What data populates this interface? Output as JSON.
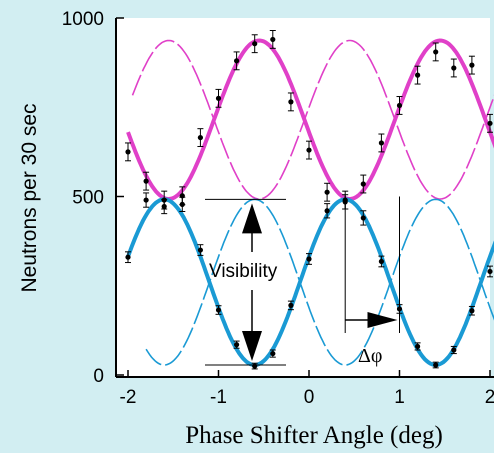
{
  "chart_data": {
    "type": "line",
    "title": "",
    "xlabel": "Phase Shifter Angle (deg)",
    "ylabel": "Neutrons per 30 sec",
    "xlim": [
      -2.1,
      2.1
    ],
    "ylim": [
      0,
      1000
    ],
    "x_ticks": [
      "-2",
      "-1",
      "0",
      "1",
      "2"
    ],
    "y_ticks": [
      "0",
      "500",
      "1000"
    ],
    "grid": false,
    "legend": "none",
    "series": [
      {
        "color": "#e040c8",
        "style": "thick-fit",
        "points": [
          {
            "x": -2.0,
            "y": 625,
            "err": 25
          },
          {
            "x": -1.8,
            "y": 543,
            "err": 25
          },
          {
            "x": -1.6,
            "y": 490,
            "err": 25
          },
          {
            "x": -1.4,
            "y": 502,
            "err": 25
          },
          {
            "x": -1.2,
            "y": 665,
            "err": 25
          },
          {
            "x": -1.0,
            "y": 775,
            "err": 25
          },
          {
            "x": -0.8,
            "y": 880,
            "err": 25
          },
          {
            "x": -0.6,
            "y": 928,
            "err": 25
          },
          {
            "x": -0.4,
            "y": 940,
            "err": 25
          },
          {
            "x": -0.2,
            "y": 765,
            "err": 25
          },
          {
            "x": 0.0,
            "y": 630,
            "err": 25
          },
          {
            "x": 0.2,
            "y": 512,
            "err": 25
          },
          {
            "x": 0.4,
            "y": 490,
            "err": 25
          },
          {
            "x": 0.6,
            "y": 535,
            "err": 25
          },
          {
            "x": 0.8,
            "y": 650,
            "err": 25
          },
          {
            "x": 1.0,
            "y": 755,
            "err": 25
          },
          {
            "x": 1.2,
            "y": 840,
            "err": 25
          },
          {
            "x": 1.4,
            "y": 905,
            "err": 25
          },
          {
            "x": 1.6,
            "y": 860,
            "err": 25
          },
          {
            "x": 1.8,
            "y": 868,
            "err": 25
          },
          {
            "x": 2.0,
            "y": 705,
            "err": 25
          }
        ]
      },
      {
        "color": "#1a9ad4",
        "style": "thick-fit",
        "points": [
          {
            "x": -2.0,
            "y": 330,
            "err": 15
          },
          {
            "x": -1.8,
            "y": 490,
            "err": 20
          },
          {
            "x": -1.6,
            "y": 472,
            "err": 20
          },
          {
            "x": -1.4,
            "y": 478,
            "err": 20
          },
          {
            "x": -1.2,
            "y": 350,
            "err": 15
          },
          {
            "x": -1.0,
            "y": 182,
            "err": 12
          },
          {
            "x": -0.8,
            "y": 85,
            "err": 10
          },
          {
            "x": -0.6,
            "y": 25,
            "err": 8
          },
          {
            "x": -0.4,
            "y": 60,
            "err": 10
          },
          {
            "x": -0.2,
            "y": 195,
            "err": 12
          },
          {
            "x": 0.0,
            "y": 325,
            "err": 15
          },
          {
            "x": 0.2,
            "y": 460,
            "err": 20
          },
          {
            "x": 0.4,
            "y": 485,
            "err": 20
          },
          {
            "x": 0.6,
            "y": 440,
            "err": 20
          },
          {
            "x": 0.8,
            "y": 318,
            "err": 15
          },
          {
            "x": 1.0,
            "y": 185,
            "err": 12
          },
          {
            "x": 1.2,
            "y": 80,
            "err": 10
          },
          {
            "x": 1.4,
            "y": 28,
            "err": 8
          },
          {
            "x": 1.6,
            "y": 70,
            "err": 10
          },
          {
            "x": 1.8,
            "y": 180,
            "err": 12
          },
          {
            "x": 2.0,
            "y": 290,
            "err": 15
          }
        ]
      },
      {
        "color": "#e040c8",
        "style": "thin-dashed-fit-shifted"
      },
      {
        "color": "#1a9ad4",
        "style": "thin-dashed-fit-shifted"
      }
    ],
    "fits": {
      "period": 2.0,
      "magenta": {
        "center": 715,
        "amplitude": 222,
        "peak_x": -0.55
      },
      "blue": {
        "center": 260,
        "amplitude": 232,
        "trough_x": -0.6
      },
      "dashed_shift": 1.0
    },
    "annotations": {
      "visibility": "Visibility",
      "delta_phi": "Δφ"
    }
  }
}
